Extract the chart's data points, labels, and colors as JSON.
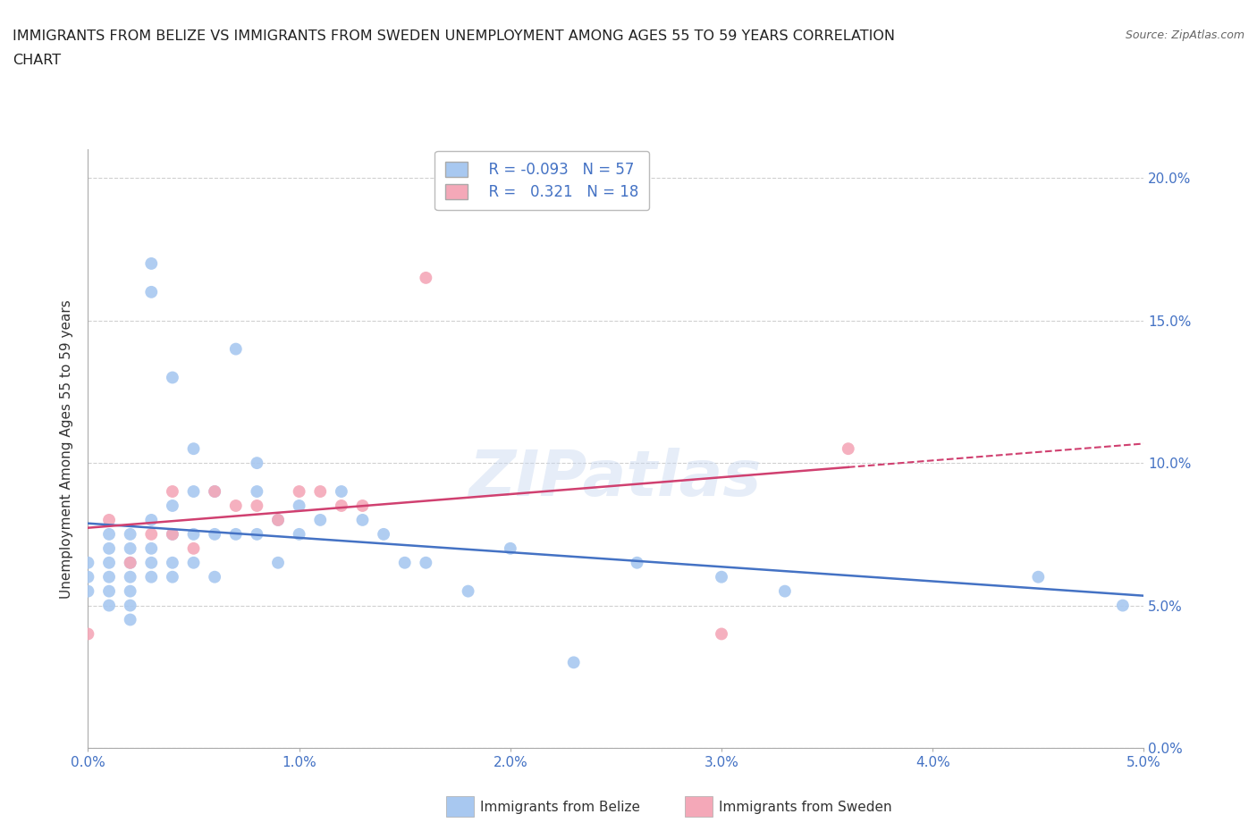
{
  "title_line1": "IMMIGRANTS FROM BELIZE VS IMMIGRANTS FROM SWEDEN UNEMPLOYMENT AMONG AGES 55 TO 59 YEARS CORRELATION",
  "title_line2": "CHART",
  "source_text": "Source: ZipAtlas.com",
  "ylabel": "Unemployment Among Ages 55 to 59 years",
  "xlabel_belize": "Immigrants from Belize",
  "xlabel_sweden": "Immigrants from Sweden",
  "belize_color": "#a8c8f0",
  "sweden_color": "#f4a8b8",
  "belize_line_color": "#4472c4",
  "sweden_line_color": "#d04070",
  "belize_R": -0.093,
  "belize_N": 57,
  "sweden_R": 0.321,
  "sweden_N": 18,
  "xlim": [
    0.0,
    0.05
  ],
  "ylim": [
    0.0,
    0.21
  ],
  "xticks": [
    0.0,
    0.01,
    0.02,
    0.03,
    0.04,
    0.05
  ],
  "yticks": [
    0.0,
    0.05,
    0.1,
    0.15,
    0.2
  ],
  "xtick_labels": [
    "0.0%",
    "1.0%",
    "2.0%",
    "3.0%",
    "4.0%",
    "5.0%"
  ],
  "ytick_labels": [
    "0.0%",
    "5.0%",
    "10.0%",
    "15.0%",
    "20.0%"
  ],
  "belize_x": [
    0.0,
    0.0,
    0.0,
    0.001,
    0.001,
    0.001,
    0.001,
    0.001,
    0.001,
    0.002,
    0.002,
    0.002,
    0.002,
    0.002,
    0.002,
    0.002,
    0.003,
    0.003,
    0.003,
    0.003,
    0.003,
    0.003,
    0.004,
    0.004,
    0.004,
    0.004,
    0.004,
    0.005,
    0.005,
    0.005,
    0.005,
    0.006,
    0.006,
    0.006,
    0.007,
    0.007,
    0.008,
    0.008,
    0.008,
    0.009,
    0.009,
    0.01,
    0.01,
    0.011,
    0.012,
    0.013,
    0.014,
    0.015,
    0.016,
    0.018,
    0.02,
    0.023,
    0.026,
    0.03,
    0.033,
    0.045,
    0.049
  ],
  "belize_y": [
    0.065,
    0.06,
    0.055,
    0.075,
    0.07,
    0.065,
    0.06,
    0.055,
    0.05,
    0.075,
    0.07,
    0.065,
    0.06,
    0.055,
    0.05,
    0.045,
    0.17,
    0.16,
    0.08,
    0.07,
    0.065,
    0.06,
    0.13,
    0.085,
    0.075,
    0.065,
    0.06,
    0.105,
    0.09,
    0.075,
    0.065,
    0.09,
    0.075,
    0.06,
    0.14,
    0.075,
    0.1,
    0.09,
    0.075,
    0.08,
    0.065,
    0.085,
    0.075,
    0.08,
    0.09,
    0.08,
    0.075,
    0.065,
    0.065,
    0.055,
    0.07,
    0.03,
    0.065,
    0.06,
    0.055,
    0.06,
    0.05
  ],
  "sweden_x": [
    0.0,
    0.001,
    0.002,
    0.003,
    0.004,
    0.004,
    0.005,
    0.006,
    0.007,
    0.008,
    0.009,
    0.01,
    0.011,
    0.012,
    0.013,
    0.016,
    0.03,
    0.036
  ],
  "sweden_y": [
    0.04,
    0.08,
    0.065,
    0.075,
    0.09,
    0.075,
    0.07,
    0.09,
    0.085,
    0.085,
    0.08,
    0.09,
    0.09,
    0.085,
    0.085,
    0.165,
    0.04,
    0.105
  ],
  "watermark": "ZIPatlas",
  "background_color": "#ffffff",
  "grid_color": "#d0d0d0",
  "belize_line_intercept": 0.082,
  "belize_line_slope": -0.6,
  "sweden_line_intercept": 0.062,
  "sweden_line_slope": 1.3
}
